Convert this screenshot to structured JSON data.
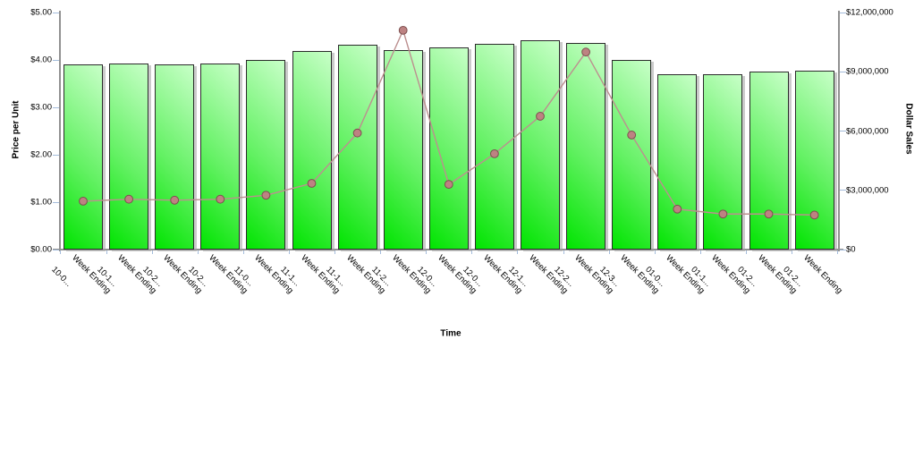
{
  "chart_data": {
    "type": "bar",
    "subtype": "combo-bar-line-dual-axis",
    "title": "",
    "xlabel": "Time",
    "category_prefix": "Week Ending",
    "categories": [
      "10-0...",
      "10-1...",
      "10-2...",
      "10-2...",
      "11-0...",
      "11-1...",
      "11-1...",
      "11-2...",
      "12-0...",
      "12-0...",
      "12-1...",
      "12-2...",
      "12-3...",
      "01-0...",
      "01-1...",
      "01-2...",
      "01-2..."
    ],
    "series": [
      {
        "name": "Price per Unit",
        "type": "bar",
        "axis": "left",
        "values": [
          3.9,
          3.92,
          3.9,
          3.93,
          4.0,
          4.18,
          4.32,
          4.2,
          4.27,
          4.34,
          4.42,
          4.35,
          4.0,
          3.7,
          3.7,
          3.75,
          3.78
        ]
      },
      {
        "name": "Dollar Sales",
        "type": "line",
        "axis": "right",
        "values": [
          2450000,
          2550000,
          2500000,
          2550000,
          2750000,
          3350000,
          5900000,
          11100000,
          3300000,
          4850000,
          6750000,
          10000000,
          5800000,
          2050000,
          1800000,
          1800000,
          1750000
        ]
      }
    ],
    "axis_left": {
      "title": "Price per Unit",
      "min": 0,
      "max": 5,
      "ticks": [
        "$0.00",
        "$1.00",
        "$2.00",
        "$3.00",
        "$4.00",
        "$5.00"
      ]
    },
    "axis_right": {
      "title": "Dollar Sales",
      "min": 0,
      "max": 12000000,
      "ticks": [
        "$0",
        "$3,000,000",
        "$6,000,000",
        "$9,000,000",
        "$12,000,000"
      ]
    },
    "grid": false,
    "legend": "none",
    "colors": {
      "bar_gradient_start": "#00e400",
      "bar_gradient_end": "#c8ffc8",
      "bar_border": "#2b2b2b",
      "bar_shadow": "#a8a8a8",
      "line": "#bc8f8f",
      "point_fill": "#bd8282",
      "point_border": "#7d4f4f",
      "axis_line": "#919191",
      "tick_mark": "#a4bcdb",
      "text": "#000000",
      "background": "#ffffff"
    }
  }
}
